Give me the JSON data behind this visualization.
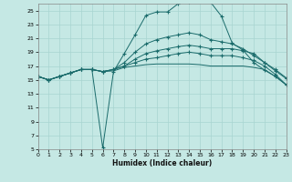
{
  "xlabel": "Humidex (Indice chaleur)",
  "bg_color": "#c5e8e4",
  "grid_color": "#a8d4d0",
  "line_color": "#1a6b6b",
  "xlim": [
    0,
    23
  ],
  "ylim": [
    5,
    26
  ],
  "xticks": [
    0,
    1,
    2,
    3,
    4,
    5,
    6,
    7,
    8,
    9,
    10,
    11,
    12,
    13,
    14,
    15,
    16,
    17,
    18,
    19,
    20,
    21,
    22,
    23
  ],
  "yticks": [
    5,
    7,
    9,
    11,
    13,
    15,
    17,
    19,
    21,
    23,
    25
  ],
  "lines": [
    {
      "x": [
        0,
        1,
        2,
        3,
        4,
        5,
        6,
        7,
        8,
        9,
        10,
        11,
        12,
        13,
        14,
        15,
        16,
        17,
        18,
        19,
        20,
        21,
        22,
        23
      ],
      "y": [
        15.5,
        15.0,
        15.5,
        16.0,
        16.5,
        16.5,
        5.2,
        16.2,
        18.8,
        21.5,
        24.3,
        24.8,
        24.8,
        26.0,
        26.3,
        26.5,
        26.2,
        24.2,
        20.3,
        19.3,
        17.5,
        16.4,
        15.5,
        14.3
      ],
      "has_markers": true
    },
    {
      "x": [
        0,
        1,
        2,
        3,
        4,
        5,
        6,
        7,
        8,
        9,
        10,
        11,
        12,
        13,
        14,
        15,
        16,
        17,
        18,
        19,
        20,
        21,
        22,
        23
      ],
      "y": [
        15.5,
        15.0,
        15.5,
        16.0,
        16.5,
        16.5,
        16.2,
        16.5,
        17.5,
        19.0,
        20.2,
        20.8,
        21.2,
        21.5,
        21.8,
        21.5,
        20.8,
        20.5,
        20.2,
        19.5,
        18.5,
        17.5,
        16.5,
        15.3
      ],
      "has_markers": true
    },
    {
      "x": [
        0,
        1,
        2,
        3,
        4,
        5,
        6,
        7,
        8,
        9,
        10,
        11,
        12,
        13,
        14,
        15,
        16,
        17,
        18,
        19,
        20,
        21,
        22,
        23
      ],
      "y": [
        15.5,
        15.0,
        15.5,
        16.0,
        16.5,
        16.5,
        16.2,
        16.5,
        17.0,
        18.0,
        18.8,
        19.2,
        19.5,
        19.8,
        20.0,
        19.8,
        19.5,
        19.5,
        19.5,
        19.2,
        18.8,
        17.5,
        16.3,
        15.2
      ],
      "has_markers": true
    },
    {
      "x": [
        0,
        1,
        2,
        3,
        4,
        5,
        6,
        7,
        8,
        9,
        10,
        11,
        12,
        13,
        14,
        15,
        16,
        17,
        18,
        19,
        20,
        21,
        22,
        23
      ],
      "y": [
        15.5,
        15.0,
        15.5,
        16.0,
        16.5,
        16.5,
        16.2,
        16.5,
        17.0,
        17.5,
        18.0,
        18.2,
        18.5,
        18.8,
        19.0,
        18.8,
        18.5,
        18.5,
        18.5,
        18.2,
        17.8,
        17.0,
        15.8,
        14.3
      ],
      "has_markers": true
    },
    {
      "x": [
        0,
        1,
        2,
        3,
        4,
        5,
        6,
        7,
        8,
        9,
        10,
        11,
        12,
        13,
        14,
        15,
        16,
        17,
        18,
        19,
        20,
        21,
        22,
        23
      ],
      "y": [
        15.5,
        15.0,
        15.5,
        16.0,
        16.5,
        16.5,
        16.2,
        16.3,
        16.8,
        17.0,
        17.2,
        17.3,
        17.3,
        17.3,
        17.3,
        17.2,
        17.0,
        17.0,
        17.0,
        17.0,
        16.8,
        16.5,
        15.5,
        14.3
      ],
      "has_markers": false
    }
  ]
}
